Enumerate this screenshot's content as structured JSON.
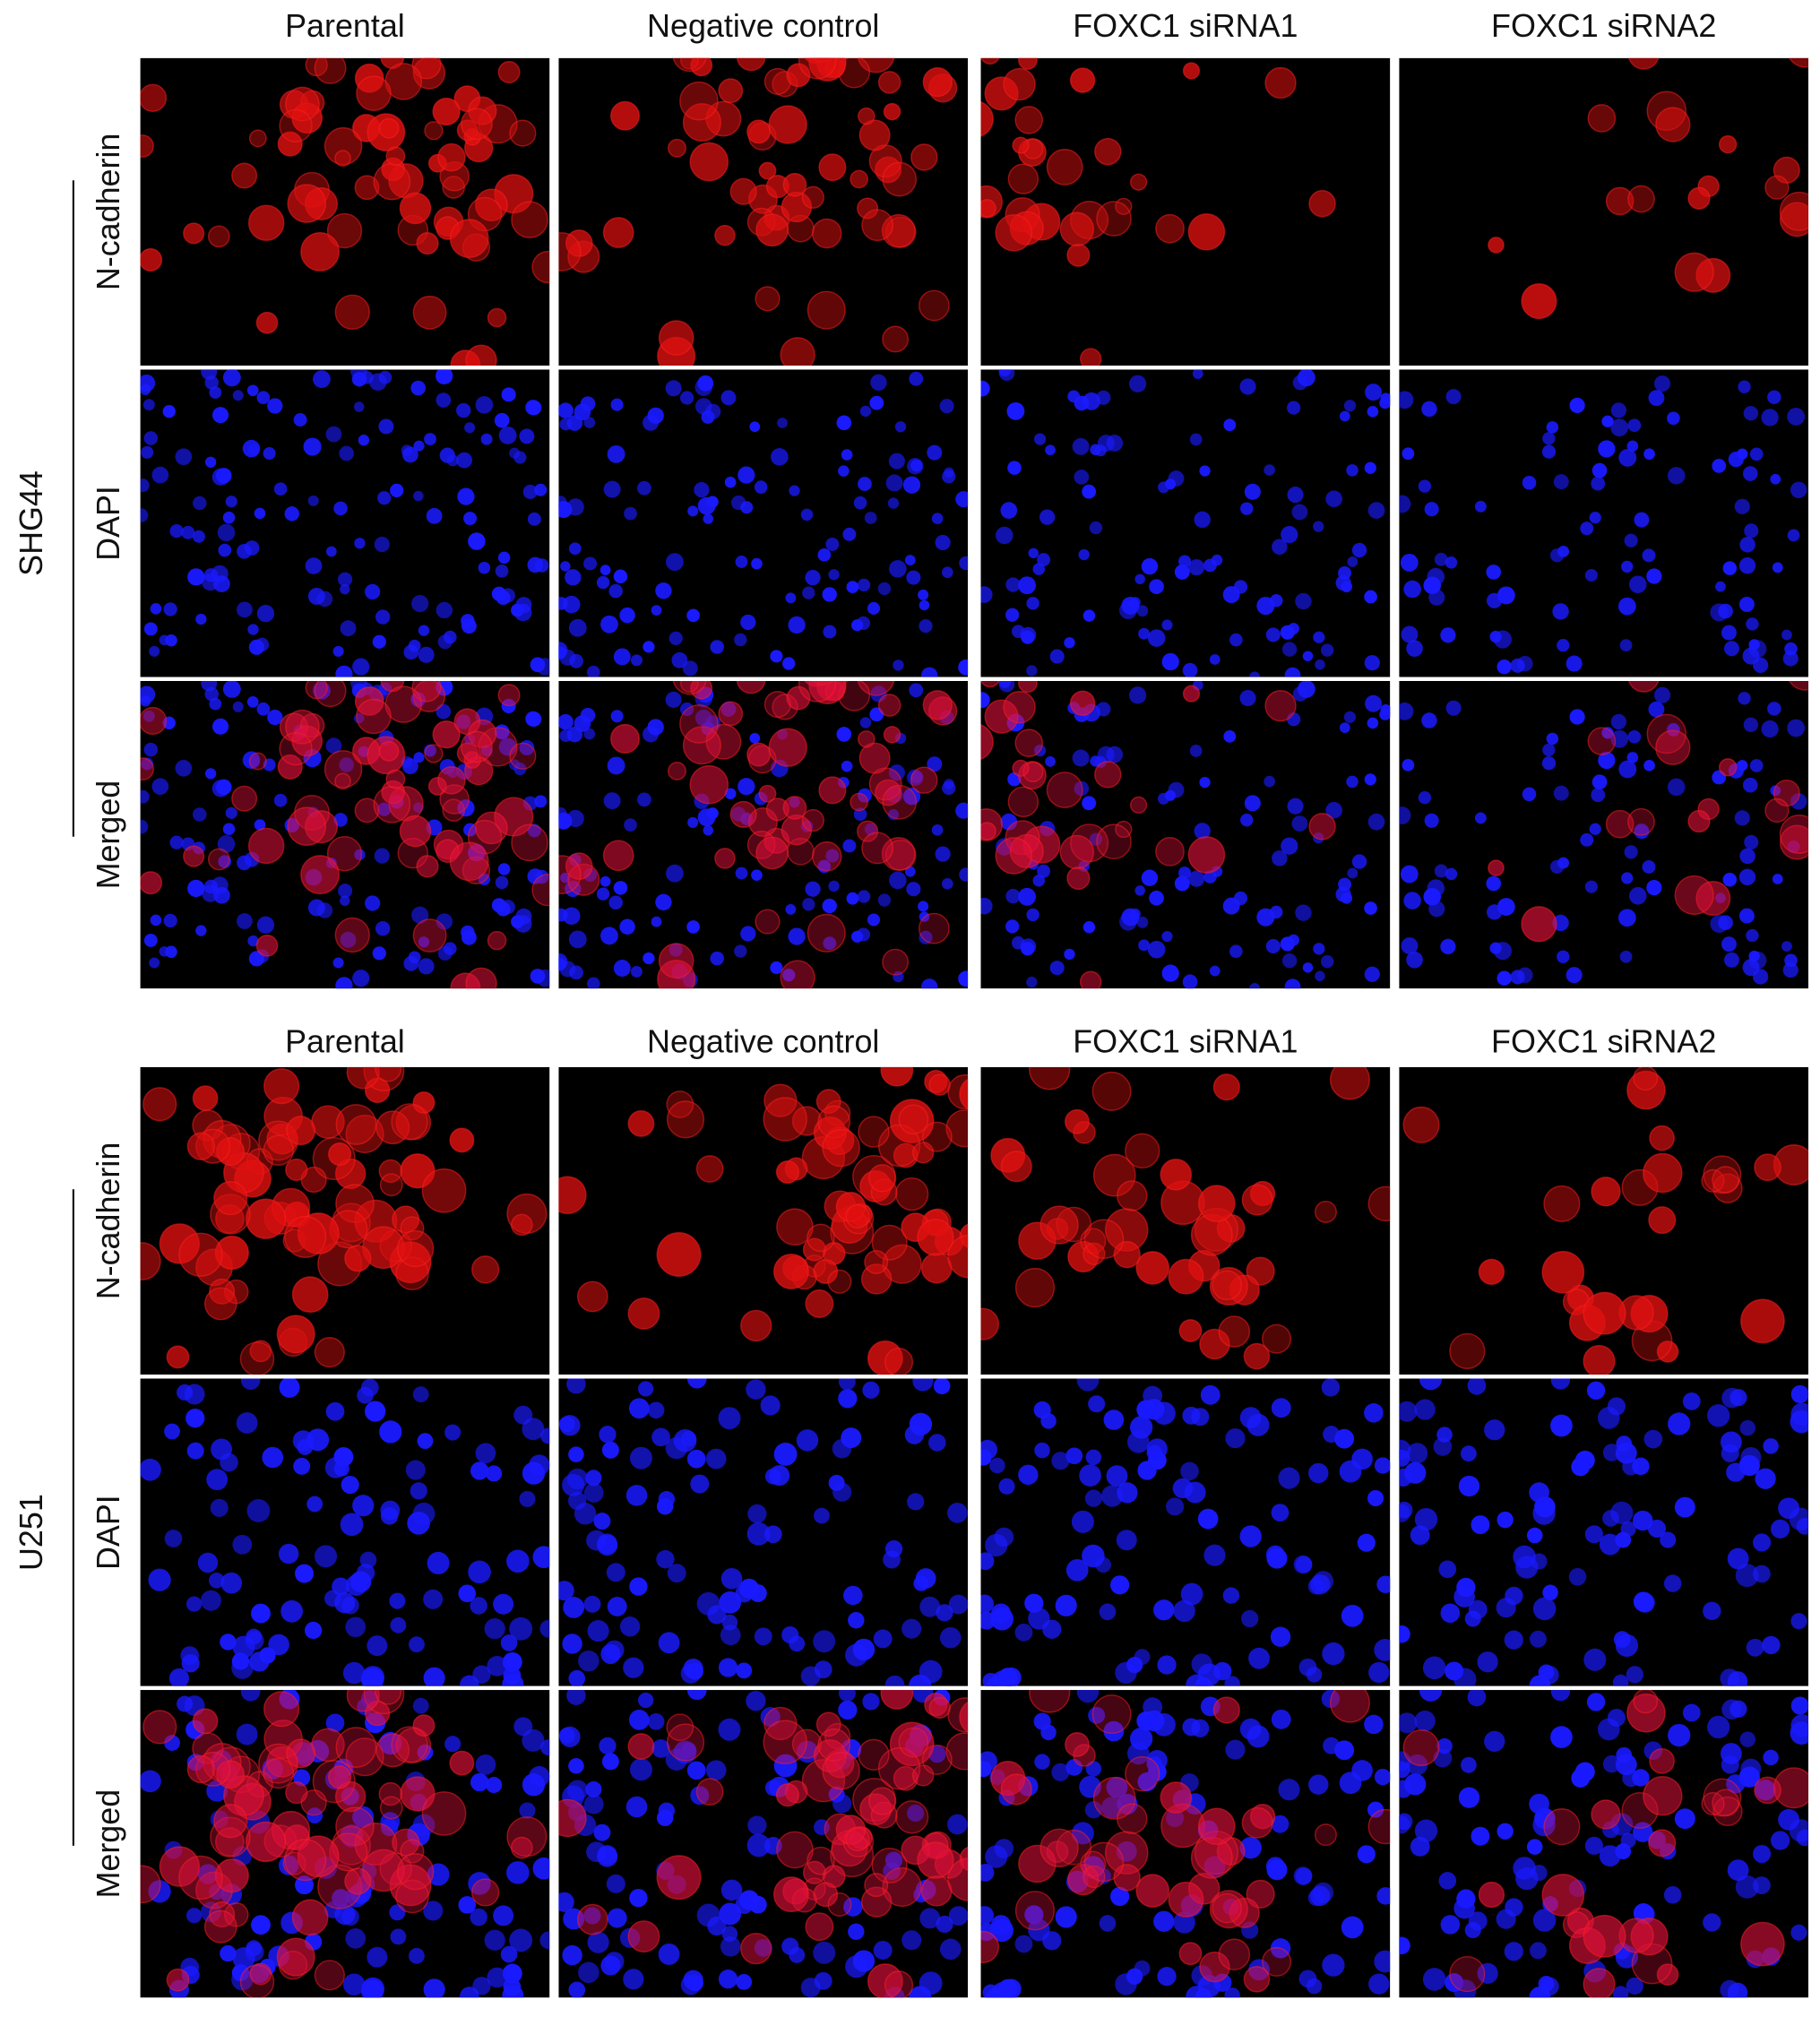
{
  "groups": [
    {
      "cell_line": "SHG44",
      "columns": [
        "Parental",
        "Negative control",
        "FOXC1 siRNA1",
        "FOXC1 siRNA2"
      ],
      "rows": [
        "N-cadherin",
        "DAPI",
        "Merged"
      ]
    },
    {
      "cell_line": "U251",
      "columns": [
        "Parental",
        "Negative control",
        "FOXC1 siRNA1",
        "FOXC1 siRNA2"
      ],
      "rows": [
        "N-cadherin",
        "DAPI",
        "Merged"
      ]
    }
  ]
}
